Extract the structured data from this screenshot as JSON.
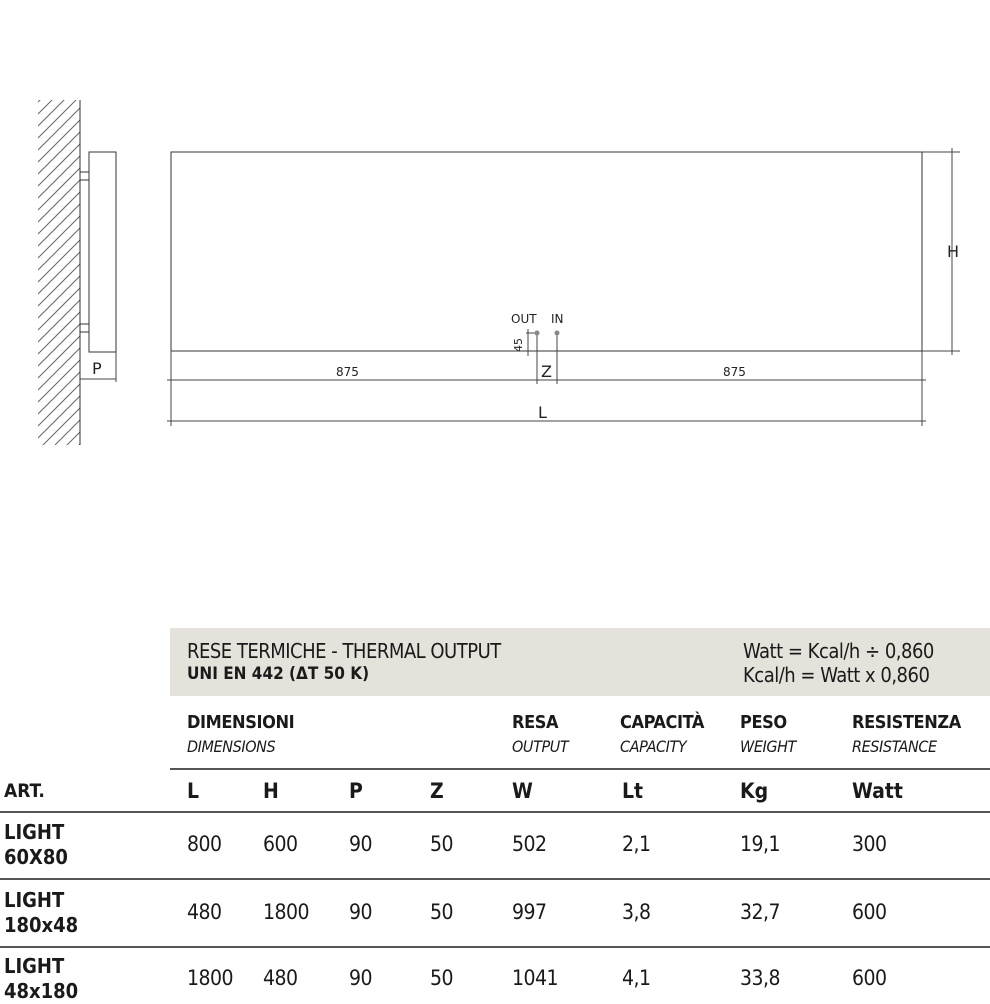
{
  "drawing": {
    "label_p": "P",
    "label_h": "H",
    "label_l": "L",
    "label_z": "Z",
    "label_out": "OUT",
    "label_in": "IN",
    "dim_45": "45",
    "dim_left": "875",
    "dim_right": "875"
  },
  "table": {
    "title": "RESE TERMICHE - THERMAL OUTPUT",
    "standard": "UNI EN 442 (ΔT 50 K)",
    "formula1": "Watt = Kcal/h ÷ 0,860",
    "formula2": "Kcal/h = Watt x 0,860",
    "groups": [
      {
        "it": "DIMENSIONI",
        "en": "DIMENSIONS"
      },
      {
        "it": "RESA",
        "en": "OUTPUT"
      },
      {
        "it": "CAPACITÀ",
        "en": "CAPACITY"
      },
      {
        "it": "PESO",
        "en": "WEIGHT"
      },
      {
        "it": "RESISTENZA",
        "en": "RESISTANCE"
      }
    ],
    "art_label": "ART.",
    "columns": [
      "L",
      "H",
      "P",
      "Z",
      "W",
      "Lt",
      "Kg",
      "Watt"
    ],
    "rows": [
      {
        "name1": "LIGHT",
        "name2": "60X80",
        "values": [
          "800",
          "600",
          "90",
          "50",
          "502",
          "2,1",
          "19,1",
          "300"
        ]
      },
      {
        "name1": "LIGHT",
        "name2": "180x48",
        "values": [
          "480",
          "1800",
          "90",
          "50",
          "997",
          "3,8",
          "32,7",
          "600"
        ]
      },
      {
        "name1": "LIGHT",
        "name2": "48x180",
        "values": [
          "1800",
          "480",
          "90",
          "50",
          "1041",
          "4,1",
          "33,8",
          "600"
        ]
      }
    ]
  }
}
